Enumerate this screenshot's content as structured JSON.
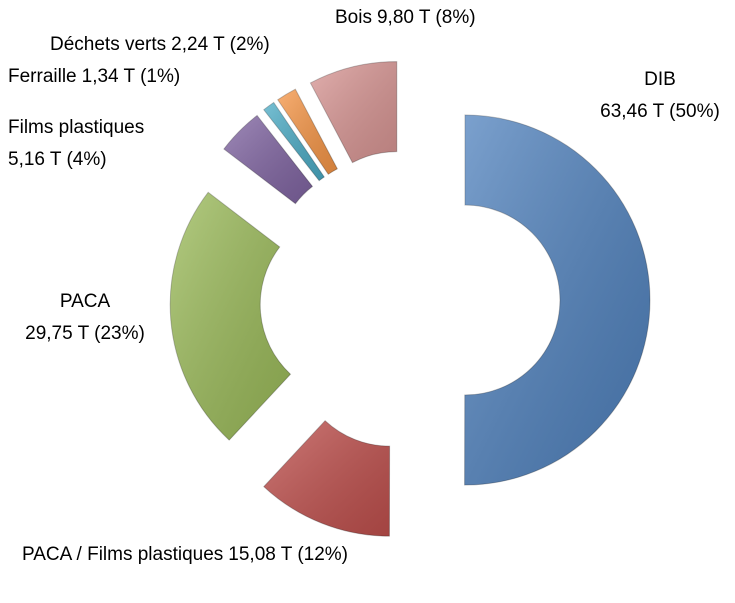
{
  "chart_data": {
    "type": "donut",
    "categories": [
      "DIB",
      "PACA / Films plastiques",
      "PACA",
      "Films plastiques",
      "Ferraille",
      "Déchets verts",
      "Bois"
    ],
    "values": [
      63.46,
      15.08,
      29.75,
      5.16,
      1.34,
      2.24,
      9.8
    ],
    "value_labels": [
      "63,46 T (50%)",
      "15,08 T (12%)",
      "29,75 T (23%)",
      "5,16 T (4%)",
      "1,34 T (1%)",
      "2,24 T (2%)",
      "9,80 T (8%)"
    ],
    "colors": [
      "#4f81bd",
      "#c0504d",
      "#9bbb59",
      "#8064a2",
      "#4bacc6",
      "#f79646",
      "#d99694"
    ]
  }
}
